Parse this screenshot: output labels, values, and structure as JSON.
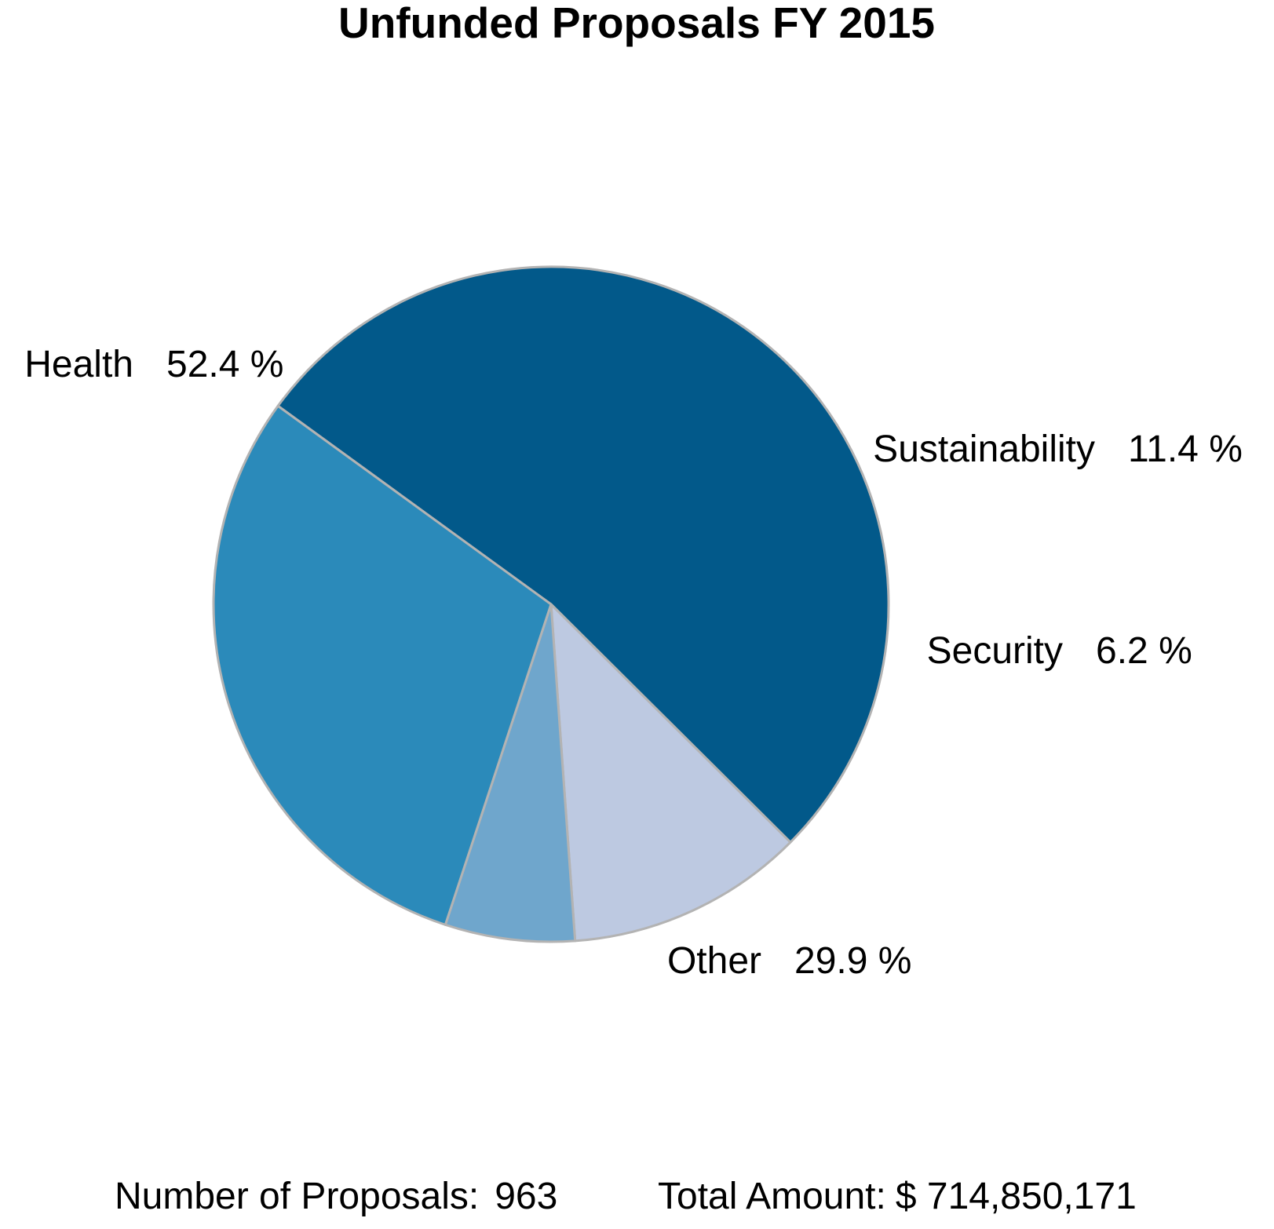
{
  "chart_data": {
    "type": "pie",
    "title": "Unfunded Proposals FY 2015",
    "slices": [
      {
        "name": "Health",
        "value": 52.4,
        "label": "52.4 %",
        "color": "#02598a"
      },
      {
        "name": "Sustainability",
        "value": 11.4,
        "label": "11.4 %",
        "color": "#bdc9e1"
      },
      {
        "name": "Security",
        "value": 6.2,
        "label": "6.2 %",
        "color": "#6fa6cc"
      },
      {
        "name": "Other",
        "value": 29.9,
        "label": "29.9 %",
        "color": "#2b8aba"
      }
    ],
    "edge_color": "#b3b3b3",
    "start_angle_deg": 216,
    "direction": "clockwise"
  },
  "footer": {
    "proposals_label": "Number of Proposals:",
    "proposals_value": "963",
    "amount_label": "Total Amount:",
    "amount_value": "$ 714,850,171"
  }
}
